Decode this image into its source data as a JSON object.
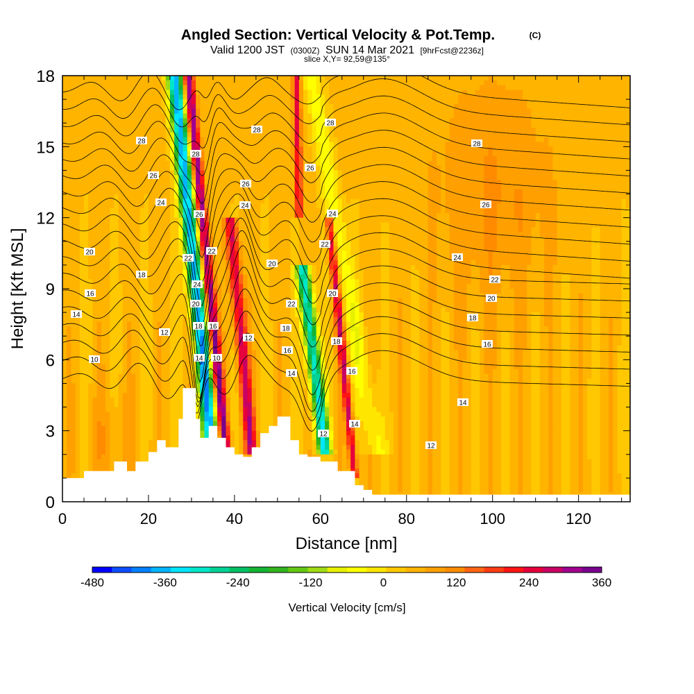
{
  "header": {
    "title": "Angled Section: Vertical Velocity & Pot.Temp.",
    "title_units": "(C)",
    "valid_prefix": "Valid 1200 JST",
    "valid_zulu": "(0300Z)",
    "valid_date": "SUN 14 Mar 2021",
    "forecast": "[9hrFcst@2236z]",
    "slice": "slice X,Y= 92,59@135°"
  },
  "chart_data": {
    "type": "heatmap",
    "title": "Angled Section: Vertical Velocity & Pot.Temp.",
    "xlabel": "Distance [nm]",
    "ylabel": "Height [Kft MSL]",
    "xlim": [
      0,
      132
    ],
    "ylim": [
      0,
      18
    ],
    "x_ticks": [
      0,
      20,
      40,
      60,
      80,
      100,
      120
    ],
    "y_ticks": [
      0,
      3,
      6,
      9,
      12,
      15,
      18
    ],
    "colorbar": {
      "label": "Vertical Velocity [cm/s]",
      "ticks": [
        -480,
        -360,
        -240,
        -120,
        0,
        120,
        240,
        360
      ],
      "colors": [
        "#0000ff",
        "#0d4dff",
        "#0080ff",
        "#00b4ff",
        "#00e6ff",
        "#00e6c8",
        "#00d296",
        "#00c064",
        "#14b432",
        "#32b41e",
        "#64c814",
        "#a0dc14",
        "#e6f000",
        "#ffff00",
        "#ffe600",
        "#ffc800",
        "#ffb400",
        "#ffa000",
        "#ff8c00",
        "#ff6414",
        "#ff3c14",
        "#ff1414",
        "#e6003c",
        "#c80064",
        "#a0008c",
        "#78008c"
      ]
    },
    "theta_contour_labels": [
      "10",
      "12",
      "14",
      "16",
      "18",
      "20",
      "22",
      "24",
      "26",
      "28"
    ],
    "terrain_kft": [
      [
        0,
        1.0
      ],
      [
        5,
        1.0
      ],
      [
        5,
        1.3
      ],
      [
        12,
        1.3
      ],
      [
        12,
        1.7
      ],
      [
        15,
        1.7
      ],
      [
        15,
        1.3
      ],
      [
        17,
        1.3
      ],
      [
        17,
        1.7
      ],
      [
        20,
        1.7
      ],
      [
        20,
        2.1
      ],
      [
        22,
        2.1
      ],
      [
        22,
        2.6
      ],
      [
        24,
        2.6
      ],
      [
        24,
        2.3
      ],
      [
        27,
        2.3
      ],
      [
        27,
        3.5
      ],
      [
        28,
        3.5
      ],
      [
        28,
        4.8
      ],
      [
        31,
        4.8
      ],
      [
        31,
        3.5
      ],
      [
        32,
        3.5
      ],
      [
        32,
        2.7
      ],
      [
        34,
        2.7
      ],
      [
        34,
        3.2
      ],
      [
        36,
        3.2
      ],
      [
        36,
        2.7
      ],
      [
        38,
        2.7
      ],
      [
        38,
        2.3
      ],
      [
        40,
        2.3
      ],
      [
        40,
        2.0
      ],
      [
        42,
        2.0
      ],
      [
        42,
        1.9
      ],
      [
        44,
        1.9
      ],
      [
        44,
        2.3
      ],
      [
        46,
        2.3
      ],
      [
        46,
        2.9
      ],
      [
        48,
        2.9
      ],
      [
        48,
        3.2
      ],
      [
        50,
        3.2
      ],
      [
        50,
        3.6
      ],
      [
        53,
        3.6
      ],
      [
        53,
        2.6
      ],
      [
        55,
        2.6
      ],
      [
        55,
        2.0
      ],
      [
        57,
        2.0
      ],
      [
        57,
        1.9
      ],
      [
        60,
        1.9
      ],
      [
        60,
        1.7
      ],
      [
        64,
        1.7
      ],
      [
        64,
        1.3
      ],
      [
        68,
        1.3
      ],
      [
        68,
        0.7
      ],
      [
        70,
        0.7
      ],
      [
        70,
        0.5
      ],
      [
        72,
        0.5
      ],
      [
        72,
        0.3
      ],
      [
        132,
        0.3
      ]
    ]
  }
}
